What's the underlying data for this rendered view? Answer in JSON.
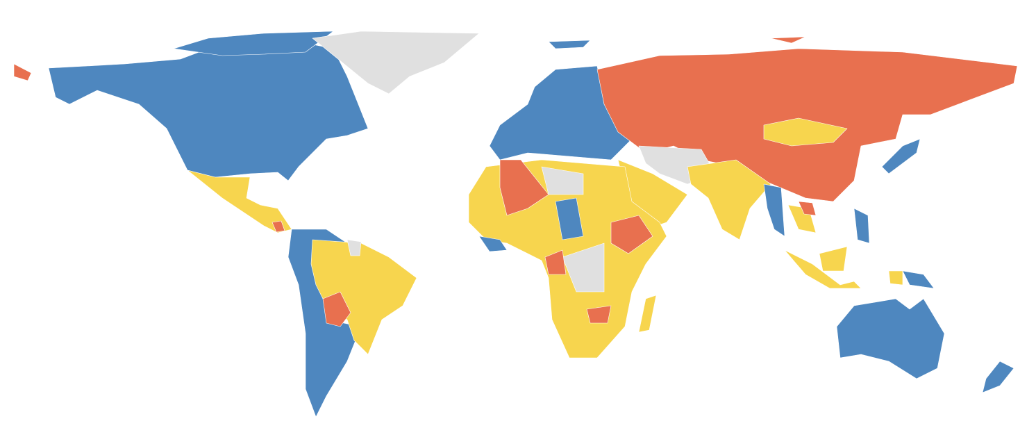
{
  "map": {
    "colors": [
      "#4e87bf",
      "#e8704f",
      "#f7d54e",
      "#e0e0e0"
    ]
  }
}
